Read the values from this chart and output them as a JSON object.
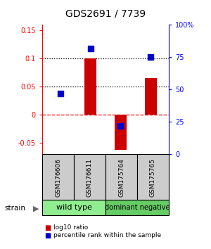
{
  "title": "GDS2691 / 7739",
  "samples": [
    "GSM176606",
    "GSM176611",
    "GSM175764",
    "GSM175765"
  ],
  "log10_ratio": [
    0.001,
    0.101,
    -0.062,
    0.065
  ],
  "percentile_rank": [
    47,
    82,
    22,
    75
  ],
  "groups": [
    {
      "label": "wild type",
      "samples": [
        0,
        1
      ],
      "color": "#90ee90"
    },
    {
      "label": "dominant negative",
      "samples": [
        2,
        3
      ],
      "color": "#66cc66"
    }
  ],
  "ylim_left": [
    -0.07,
    0.16
  ],
  "ylim_right": [
    0,
    100
  ],
  "yticks_left": [
    -0.05,
    0,
    0.05,
    0.1,
    0.15
  ],
  "ytick_labels_left": [
    "-0.05",
    "0",
    "0.05",
    "0.1",
    "0.15"
  ],
  "yticks_right": [
    0,
    25,
    50,
    75,
    100
  ],
  "ytick_labels_right": [
    "0",
    "25",
    "50",
    "75",
    "100%"
  ],
  "hlines_dotted": [
    0.05,
    0.1
  ],
  "hline_dashed": 0,
  "bar_color": "#cc0000",
  "dot_color": "#0000cc",
  "bar_width": 0.4,
  "dot_size": 40,
  "background_color": "#ffffff",
  "sample_box_color": "#cccccc",
  "group_border_color": "#000000",
  "legend_items": [
    {
      "color": "#cc0000",
      "label": "log10 ratio"
    },
    {
      "color": "#0000cc",
      "label": "percentile rank within the sample"
    }
  ]
}
